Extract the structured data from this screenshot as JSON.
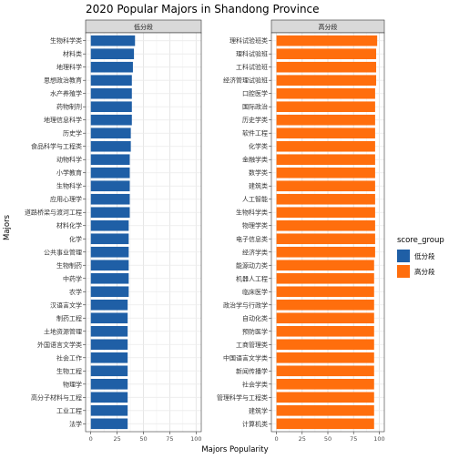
{
  "chart_data": {
    "type": "bar",
    "orientation": "horizontal",
    "title": "2020 Popular Majors in Shandong Province",
    "xlabel": "Majors Popularity",
    "ylabel": "Majors",
    "xlim": [
      0,
      100
    ],
    "xticks": [
      0,
      25,
      50,
      75,
      100
    ],
    "grid": true,
    "legend": {
      "title": "score_group",
      "placement": "right",
      "entries": [
        {
          "label": "低分段",
          "color": "#1f5fa6"
        },
        {
          "label": "高分段",
          "color": "#ff6e0d"
        }
      ]
    },
    "facets": [
      {
        "name": "低分段",
        "color": "#1f5fa6",
        "categories": [
          "生物科学类",
          "材料类",
          "地理科学",
          "思想政治教育",
          "水产养殖学",
          "药物制剂",
          "地理信息科学",
          "历史学",
          "食品科学与工程类",
          "动物科学",
          "小学教育",
          "生物科学",
          "应用心理学",
          "道路桥梁与渡河工程",
          "材料化学",
          "化学",
          "公共事业管理",
          "生物制药",
          "中药学",
          "农学",
          "汉语言文学",
          "制药工程",
          "土地资源管理",
          "外国语言文学类",
          "社会工作",
          "生物工程",
          "物理学",
          "高分子材料与工程",
          "工业工程",
          "法学"
        ],
        "values": [
          42,
          41,
          40,
          39,
          39,
          39,
          39,
          38,
          38,
          37,
          37,
          37,
          37,
          37,
          36,
          36,
          36,
          36,
          36,
          36,
          35,
          35,
          35,
          35,
          35,
          35,
          35,
          35,
          35,
          35
        ]
      },
      {
        "name": "高分段",
        "color": "#ff6e0d",
        "categories": [
          "理科试验班类",
          "理科试验班",
          "工科试验班",
          "经济管理试验班",
          "口腔医学",
          "国际政治",
          "历史学类",
          "软件工程",
          "化学类",
          "金融学类",
          "数学类",
          "建筑类",
          "人工智能",
          "生物科学类",
          "物理学类",
          "电子信息类",
          "经济学类",
          "能源动力类",
          "机器人工程",
          "临床医学",
          "政治学与行政学",
          "自动化类",
          "预防医学",
          "工商管理类",
          "中国语言文学类",
          "新闻传播学",
          "社会学类",
          "管理科学与工程类",
          "建筑学",
          "计算机类"
        ],
        "values": [
          98,
          97,
          97,
          97,
          96,
          96,
          96,
          96,
          96,
          96,
          96,
          96,
          96,
          96,
          96,
          96,
          96,
          95,
          95,
          95,
          95,
          95,
          95,
          95,
          95,
          95,
          95,
          95,
          95,
          95
        ]
      }
    ]
  }
}
